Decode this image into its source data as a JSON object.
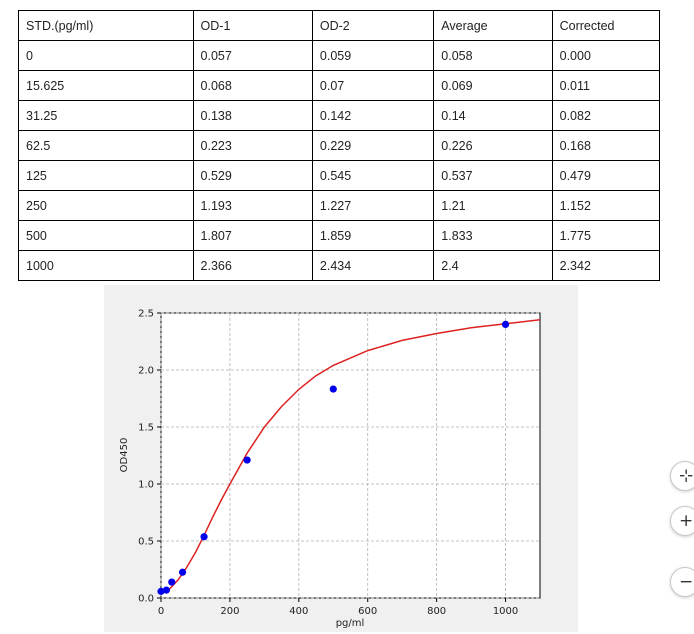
{
  "table": {
    "headers": [
      "STD.(pg/ml)",
      "OD-1",
      "OD-2",
      "Average",
      "Corrected"
    ],
    "rows": [
      [
        "0",
        "0.057",
        "0.059",
        "0.058",
        "0.000"
      ],
      [
        "15.625",
        "0.068",
        "0.07",
        "0.069",
        "0.011"
      ],
      [
        "31.25",
        "0.138",
        "0.142",
        "0.14",
        "0.082"
      ],
      [
        "62.5",
        "0.223",
        "0.229",
        "0.226",
        "0.168"
      ],
      [
        "125",
        "0.529",
        "0.545",
        "0.537",
        "0.479"
      ],
      [
        "250",
        "1.193",
        "1.227",
        "1.21",
        "1.152"
      ],
      [
        "500",
        "1.807",
        "1.859",
        "1.833",
        "1.775"
      ],
      [
        "1000",
        "2.366",
        "2.434",
        "2.4",
        "2.342"
      ]
    ]
  },
  "chart_data": {
    "type": "scatter",
    "xlabel": "pg/ml",
    "ylabel": "OD450",
    "xlim": [
      0,
      1100
    ],
    "ylim": [
      0,
      2.5
    ],
    "xticks": [
      "0",
      "200",
      "400",
      "600",
      "800",
      "1000"
    ],
    "yticks": [
      "0.0",
      "0.5",
      "1.0",
      "1.5",
      "2.0",
      "2.5"
    ],
    "grid": true,
    "points": {
      "x": [
        0,
        15.625,
        31.25,
        62.5,
        125,
        250,
        500,
        1000
      ],
      "y": [
        0.058,
        0.069,
        0.14,
        0.226,
        0.537,
        1.21,
        1.833,
        2.4
      ],
      "color": "#0000ee"
    },
    "fit_curve": {
      "color": "#dd2222",
      "x": [
        0,
        25,
        50,
        75,
        100,
        125,
        150,
        175,
        200,
        250,
        300,
        350,
        400,
        450,
        500,
        600,
        700,
        800,
        900,
        1000,
        1100
      ],
      "y": [
        0.05,
        0.08,
        0.16,
        0.27,
        0.4,
        0.55,
        0.71,
        0.86,
        1.0,
        1.27,
        1.5,
        1.68,
        1.83,
        1.95,
        2.04,
        2.17,
        2.26,
        2.32,
        2.37,
        2.405,
        2.44
      ]
    }
  },
  "controls": {
    "fit_symbol": "⊹",
    "zoom_in_symbol": "+",
    "zoom_out_symbol": "−"
  }
}
